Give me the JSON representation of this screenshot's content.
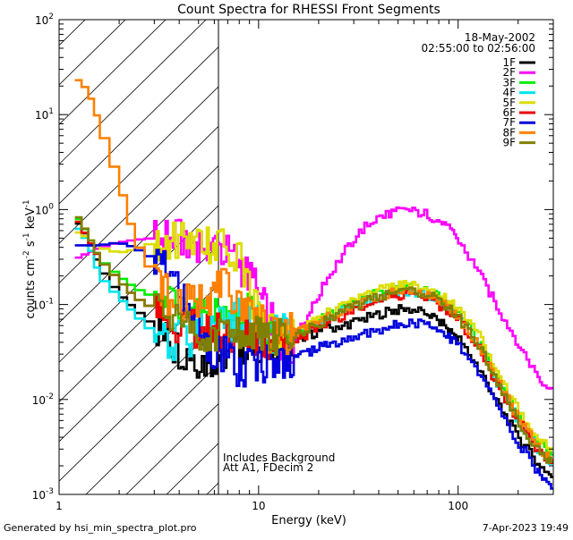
{
  "chart_data": {
    "type": "line",
    "title": "Count Spectra for RHESSI Front Segments",
    "xlabel": "Energy (keV)",
    "ylabel_parts": [
      "counts cm",
      "-2",
      " s",
      "-1",
      " keV",
      "-1"
    ],
    "xscale": "log",
    "yscale": "log",
    "xlim": [
      1,
      300
    ],
    "ylim": [
      0.001,
      100
    ],
    "x_ticks": [
      {
        "value": 1,
        "label": "1"
      },
      {
        "value": 10,
        "label": "10"
      },
      {
        "value": 100,
        "label": "100"
      }
    ],
    "y_ticks": [
      {
        "value": 0.001,
        "mantissa": "10",
        "exponent": "-3"
      },
      {
        "value": 0.01,
        "mantissa": "10",
        "exponent": "-2"
      },
      {
        "value": 0.1,
        "mantissa": "10",
        "exponent": "-1"
      },
      {
        "value": 1,
        "mantissa": "10",
        "exponent": "0"
      },
      {
        "value": 10,
        "mantissa": "10",
        "exponent": "1"
      },
      {
        "value": 100,
        "mantissa": "10",
        "exponent": "2"
      }
    ],
    "hatched_region_max_keV": 6,
    "date": "18-May-2002",
    "time_range": "02:55:00 to 02:56:00",
    "annotations": [
      "Includes Background",
      "Att A1, FDecim 2"
    ],
    "x": [
      1.2,
      1.4,
      1.6,
      2.0,
      2.4,
      3.0,
      3.6,
      4.5,
      5.5,
      6.5,
      8,
      9.5,
      11,
      13,
      15,
      18,
      22,
      28,
      35,
      45,
      55,
      70,
      85,
      100,
      130,
      160,
      200,
      250,
      300
    ],
    "series": [
      {
        "name": "1F",
        "color": "#000000",
        "values": [
          0.8,
          0.5,
          0.25,
          0.13,
          0.09,
          0.06,
          0.04,
          0.03,
          0.025,
          0.03,
          0.035,
          0.04,
          0.04,
          0.04,
          0.042,
          0.048,
          0.055,
          0.062,
          0.072,
          0.085,
          0.09,
          0.083,
          0.06,
          0.045,
          0.02,
          0.009,
          0.004,
          0.0022,
          0.0015
        ]
      },
      {
        "name": "2F",
        "color": "#ff00ff",
        "values": [
          0.3,
          0.35,
          0.4,
          0.45,
          0.48,
          0.5,
          0.5,
          0.48,
          0.45,
          0.38,
          0.28,
          0.16,
          0.08,
          0.04,
          0.04,
          0.08,
          0.18,
          0.4,
          0.7,
          0.92,
          0.98,
          0.9,
          0.7,
          0.5,
          0.2,
          0.09,
          0.04,
          0.018,
          0.012
        ]
      },
      {
        "name": "3F",
        "color": "#00ee00",
        "values": [
          0.9,
          0.55,
          0.3,
          0.2,
          0.15,
          0.12,
          0.1,
          0.08,
          0.07,
          0.07,
          0.075,
          0.08,
          0.05,
          0.05,
          0.052,
          0.06,
          0.075,
          0.095,
          0.12,
          0.14,
          0.15,
          0.14,
          0.11,
          0.08,
          0.04,
          0.016,
          0.007,
          0.0035,
          0.0025
        ]
      },
      {
        "name": "4F",
        "color": "#00e5ee",
        "values": [
          0.7,
          0.45,
          0.2,
          0.12,
          0.08,
          0.05,
          0.04,
          0.045,
          0.055,
          0.06,
          0.07,
          0.08,
          0.05,
          0.05,
          0.05,
          0.058,
          0.072,
          0.09,
          0.11,
          0.13,
          0.14,
          0.13,
          0.1,
          0.075,
          0.035,
          0.014,
          0.006,
          0.003,
          0.002
        ]
      },
      {
        "name": "5F",
        "color": "#dddd00",
        "values": [
          0.6,
          0.5,
          0.4,
          0.35,
          0.38,
          0.45,
          0.5,
          0.5,
          0.45,
          0.42,
          0.35,
          0.1,
          0.05,
          0.05,
          0.055,
          0.062,
          0.08,
          0.1,
          0.13,
          0.15,
          0.16,
          0.15,
          0.12,
          0.09,
          0.045,
          0.018,
          0.008,
          0.004,
          0.003
        ]
      },
      {
        "name": "6F",
        "color": "#ee0000",
        "values": [
          0.85,
          0.5,
          0.3,
          0.18,
          0.12,
          0.09,
          0.07,
          0.06,
          0.055,
          0.05,
          0.045,
          0.045,
          0.04,
          0.04,
          0.042,
          0.05,
          0.065,
          0.08,
          0.1,
          0.12,
          0.13,
          0.12,
          0.09,
          0.07,
          0.032,
          0.013,
          0.006,
          0.003,
          0.002
        ]
      },
      {
        "name": "7F",
        "color": "#0000dd",
        "values": [
          0.42,
          0.42,
          0.42,
          0.45,
          0.4,
          0.3,
          0.2,
          0.1,
          0.04,
          0.03,
          0.02,
          0.025,
          0.025,
          0.025,
          0.028,
          0.032,
          0.037,
          0.043,
          0.05,
          0.058,
          0.065,
          0.063,
          0.05,
          0.038,
          0.018,
          0.008,
          0.0036,
          0.0018,
          0.0012
        ]
      },
      {
        "name": "8F",
        "color": "#ff8000",
        "values": [
          25,
          18,
          8,
          2,
          0.5,
          0.2,
          0.12,
          0.1,
          0.12,
          0.15,
          0.12,
          0.08,
          0.05,
          0.05,
          0.05,
          0.058,
          0.072,
          0.09,
          0.11,
          0.13,
          0.14,
          0.13,
          0.1,
          0.075,
          0.035,
          0.015,
          0.0065,
          0.0032,
          0.0022
        ]
      },
      {
        "name": "9F",
        "color": "#808000",
        "values": [
          0.95,
          0.55,
          0.3,
          0.18,
          0.12,
          0.09,
          0.07,
          0.06,
          0.05,
          0.045,
          0.045,
          0.05,
          0.045,
          0.045,
          0.048,
          0.055,
          0.07,
          0.088,
          0.11,
          0.13,
          0.14,
          0.13,
          0.1,
          0.075,
          0.035,
          0.014,
          0.006,
          0.003,
          0.002
        ]
      }
    ]
  },
  "footer": {
    "generated_by": "Generated by hsi_min_spectra_plot.pro",
    "timestamp": "7-Apr-2023 19:49"
  }
}
